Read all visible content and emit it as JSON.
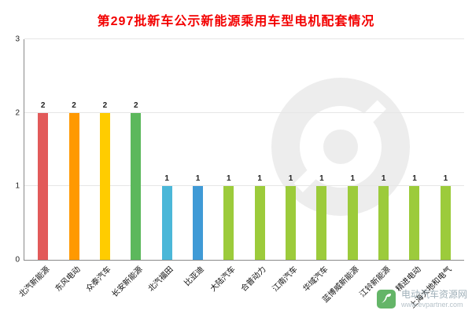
{
  "title": "第297批新车公示新能源乘用车型电机配套情况",
  "watermark": {
    "site_name": "电动汽车资源网",
    "site_url": "www.evpartner.com"
  },
  "chart_data": {
    "type": "bar",
    "title": "第297批新车公示新能源乘用车型电机配套情况",
    "categories": [
      "北汽新能源",
      "东风电动",
      "众泰汽车",
      "长安新能源",
      "北汽福田",
      "比亚迪",
      "大陆汽车",
      "合普动力",
      "江南汽车",
      "华域汽车",
      "蓝博威新能源",
      "江铃新能源",
      "精进电动",
      "上海大地和电气"
    ],
    "values": [
      2,
      2,
      2,
      2,
      1,
      1,
      1,
      1,
      1,
      1,
      1,
      1,
      1,
      1
    ],
    "bar_colors": [
      "#e25a5a",
      "#ff9900",
      "#ffcc00",
      "#5cb85c",
      "#4bb7d8",
      "#3f9ad6",
      "#9ccb3b",
      "#9ccb3b",
      "#9ccb3b",
      "#9ccb3b",
      "#9ccb3b",
      "#9ccb3b",
      "#9ccb3b",
      "#9ccb3b"
    ],
    "xlabel": "",
    "ylabel": "",
    "ylim": [
      0,
      3
    ],
    "yticks": [
      0,
      1,
      2,
      3
    ],
    "grid": "horizontal",
    "legend": "none"
  }
}
